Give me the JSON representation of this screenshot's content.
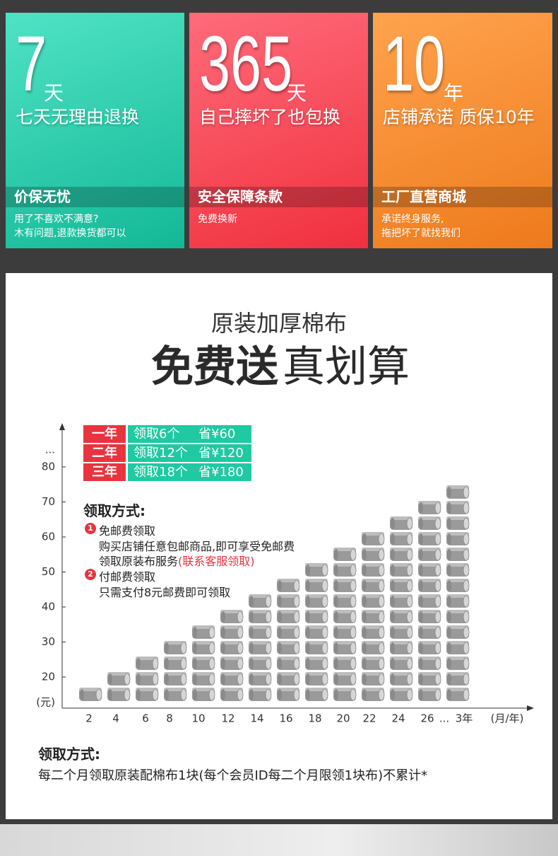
{
  "cards": [
    {
      "number": "7",
      "unit": "天",
      "headline": "七天无理由退换",
      "band": "价保无忧",
      "lines": [
        "用了不喜欢不满意?",
        "木有问题,退款换货都可以"
      ]
    },
    {
      "number": "365",
      "unit": "天",
      "headline": "自己摔坏了也包换",
      "band": "安全保障条款",
      "lines": [
        "免费换新"
      ]
    },
    {
      "number": "10",
      "unit": "年",
      "headline": "店铺承诺 质保10年",
      "band": "工厂直营商城",
      "lines": [
        "承诺终身服务,",
        "拖把坏了就找我们"
      ]
    }
  ],
  "promo": {
    "subtitle": "原装加厚棉布",
    "title_bold": "免费送",
    "title_light": "真划算"
  },
  "offers": [
    {
      "period": "一年",
      "get": "领取6个",
      "save": "省¥60"
    },
    {
      "period": "二年",
      "get": "领取12个",
      "save": "省¥120"
    },
    {
      "period": "三年",
      "get": "领取18个",
      "save": "省¥180"
    }
  ],
  "method": {
    "title": "领取方式:",
    "steps": [
      {
        "badge": "1",
        "title": "免邮费领取",
        "lines": [
          "购买店铺任意包邮商品,即可享受免邮费",
          "领取原装布服务"
        ],
        "highlight": "(联系客服领取)"
      },
      {
        "badge": "2",
        "title": "付邮费领取",
        "lines": [
          "只需支付8元邮费即可领取"
        ]
      }
    ]
  },
  "chart": {
    "y_ellipsis": "...",
    "yticks": [
      80,
      70,
      60,
      50,
      40,
      30,
      20
    ],
    "y_unit": "(元)",
    "xticks": [
      "2",
      "4",
      "6",
      "8",
      "10",
      "12",
      "14",
      "16",
      "18",
      "20",
      "22",
      "24",
      "26",
      "...",
      "3年"
    ],
    "x_unit": "(月/年)",
    "stacks": [
      1,
      2,
      3,
      4,
      5,
      6,
      7,
      8,
      9,
      10,
      11,
      12,
      13,
      14
    ]
  },
  "footer": {
    "title": "领取方式:",
    "text": "每二个月领取原装配棉布1块(每个会员ID每二个月限领1块布)不累计*"
  }
}
